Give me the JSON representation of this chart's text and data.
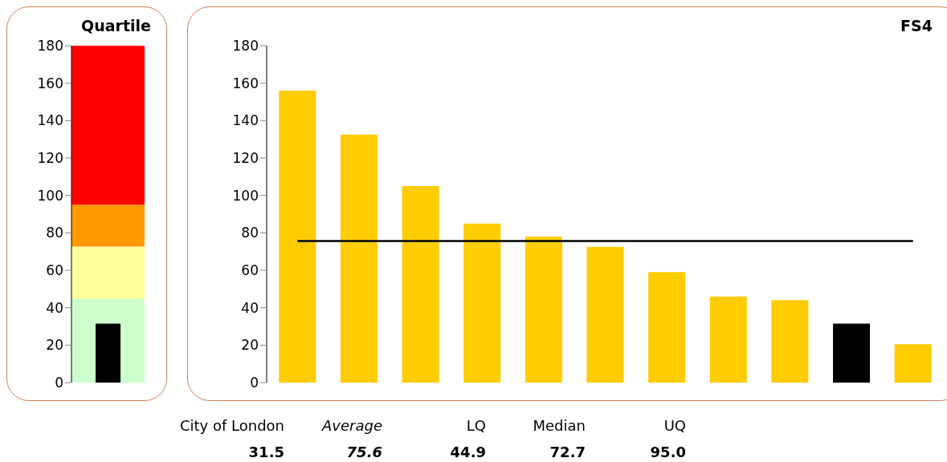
{
  "chart_data": [
    {
      "type": "bar",
      "title": "Quartile",
      "categories": [
        null
      ],
      "values": [
        31.5
      ],
      "colors": [
        "#000000"
      ],
      "ylim": [
        0,
        180
      ],
      "yticks": [
        0,
        20,
        40,
        60,
        80,
        100,
        120,
        140,
        160,
        180
      ],
      "bands": [
        {
          "axis": "y",
          "from": 0,
          "to": 44.9,
          "color": "#ccffcc"
        },
        {
          "axis": "y",
          "from": 44.9,
          "to": 72.7,
          "color": "#ffff99"
        },
        {
          "axis": "y",
          "from": 72.7,
          "to": 95.0,
          "color": "#ff9900"
        },
        {
          "axis": "y",
          "from": 95.0,
          "to": 180,
          "color": "#ff0000"
        }
      ]
    },
    {
      "type": "bar",
      "title": "FS4",
      "categories": [
        null,
        null,
        null,
        null,
        null,
        null,
        null,
        null,
        null,
        null,
        null
      ],
      "values": [
        156,
        132.5,
        105,
        85,
        78,
        72.5,
        59,
        46,
        44,
        31.5,
        20.5
      ],
      "colors": [
        "#ffcc00",
        "#ffcc00",
        "#ffcc00",
        "#ffcc00",
        "#ffcc00",
        "#ffcc00",
        "#ffcc00",
        "#ffcc00",
        "#ffcc00",
        "#000000",
        "#ffcc00"
      ],
      "ylim": [
        0,
        180
      ],
      "yticks": [
        0,
        20,
        40,
        60,
        80,
        100,
        120,
        140,
        160,
        180
      ],
      "ref_lines": [
        {
          "axis": "y",
          "value": 75.6,
          "color": "#000000"
        }
      ],
      "annotations": [
        "City of London",
        "Average",
        "LQ",
        "Median",
        "UQ",
        "31.5",
        "75.6",
        "44.9",
        "72.7",
        "95.0"
      ]
    }
  ]
}
